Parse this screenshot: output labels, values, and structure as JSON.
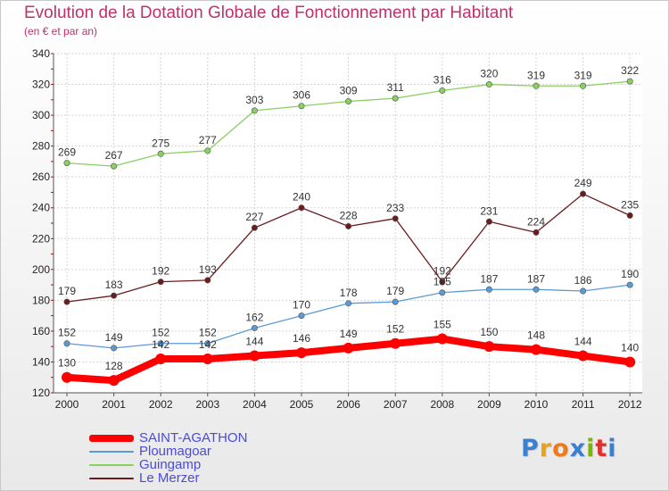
{
  "title": "Evolution de la Dotation Globale de Fonctionnement par Habitant",
  "subtitle": "(en € et par an)",
  "logo": {
    "text": "Proxiti",
    "colors": [
      "#3b7fd1",
      "#e8a317",
      "#f07a1a",
      "#3b7fd1",
      "#7ab800",
      "#e03030",
      "#3b7fd1"
    ]
  },
  "chart_data": {
    "type": "line",
    "x": [
      "2000",
      "2001",
      "2002",
      "2003",
      "2004",
      "2005",
      "2006",
      "2007",
      "2008",
      "2009",
      "2010",
      "2011",
      "2012"
    ],
    "yticks": [
      "120",
      "140",
      "160",
      "180",
      "200",
      "220",
      "240",
      "260",
      "280",
      "300",
      "320",
      "340"
    ],
    "ylim": [
      120,
      340
    ],
    "grid": true,
    "legend": "bottom-left",
    "series": [
      {
        "name": "SAINT-AGATHON",
        "color": "#ff0000",
        "values": [
          130,
          128,
          142,
          142,
          144,
          146,
          149,
          152,
          155,
          150,
          148,
          144,
          140
        ]
      },
      {
        "name": "Ploumagoar",
        "color": "#5b9bd5",
        "values": [
          152,
          149,
          152,
          152,
          162,
          170,
          178,
          179,
          185,
          187,
          187,
          186,
          190
        ]
      },
      {
        "name": "Guingamp",
        "color": "#88d060",
        "values": [
          269,
          267,
          275,
          277,
          303,
          306,
          309,
          311,
          316,
          320,
          319,
          319,
          322
        ]
      },
      {
        "name": "Le Merzer",
        "color": "#6b1c1c",
        "values": [
          179,
          183,
          192,
          193,
          227,
          240,
          228,
          233,
          192,
          231,
          224,
          249,
          235
        ]
      }
    ]
  }
}
